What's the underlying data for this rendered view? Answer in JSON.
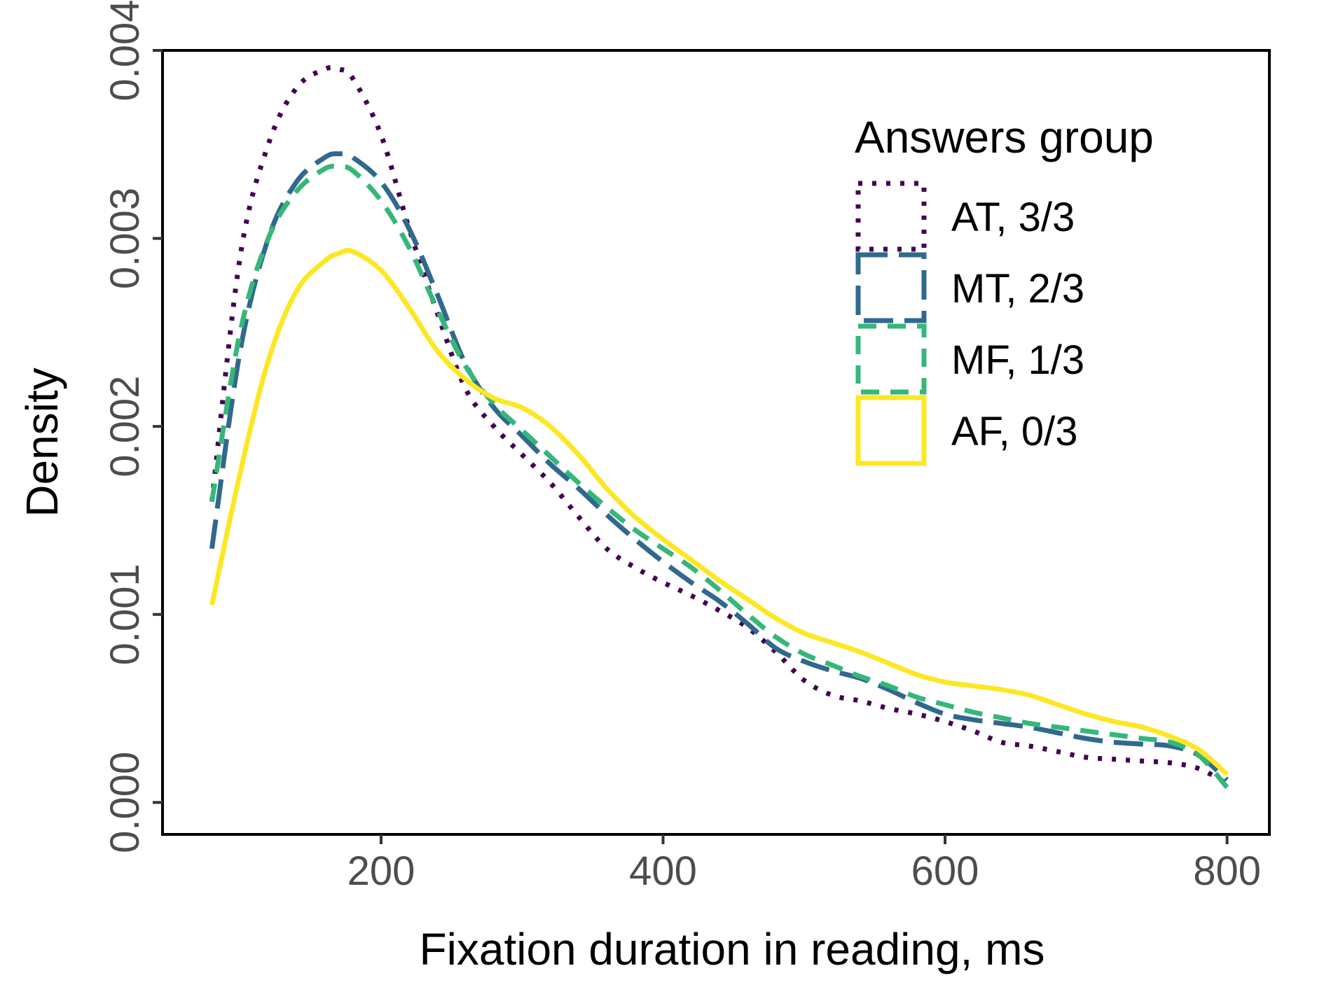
{
  "chart_data": {
    "type": "line",
    "title": "",
    "xlabel": "Fixation duration in reading, ms",
    "ylabel": "Density",
    "xlim": [
      45,
      830
    ],
    "ylim": [
      -0.00017,
      0.004
    ],
    "x_ticks": [
      200,
      400,
      600,
      800
    ],
    "x_tick_labels": [
      "200",
      "400",
      "600",
      "800"
    ],
    "y_ticks": [
      0.0,
      0.001,
      0.002,
      0.003,
      0.004
    ],
    "y_tick_labels": [
      "0.000",
      "0.001",
      "0.002",
      "0.003",
      "0.004"
    ],
    "grid": false,
    "legend": {
      "title": "Answers group",
      "position": "top-right"
    },
    "x": [
      80,
      100,
      120,
      140,
      160,
      170,
      180,
      200,
      220,
      240,
      260,
      280,
      300,
      320,
      340,
      360,
      380,
      400,
      420,
      440,
      460,
      480,
      500,
      520,
      540,
      560,
      580,
      600,
      620,
      640,
      660,
      680,
      700,
      720,
      740,
      760,
      780,
      800
    ],
    "series": [
      {
        "name": "AT, 3/3",
        "color": "#440154",
        "dash": "dotted",
        "values": [
          0.0016,
          0.0029,
          0.0035,
          0.0038,
          0.0039,
          0.0039,
          0.00385,
          0.00355,
          0.00305,
          0.0026,
          0.0022,
          0.002,
          0.00185,
          0.0017,
          0.00152,
          0.00135,
          0.00125,
          0.00117,
          0.0011,
          0.00102,
          0.00093,
          0.0008,
          0.00065,
          0.00057,
          0.00054,
          0.0005,
          0.00047,
          0.00043,
          0.00038,
          0.00032,
          0.0003,
          0.00027,
          0.00024,
          0.00023,
          0.00022,
          0.00021,
          0.00018,
          0.0001
        ]
      },
      {
        "name": "MT, 2/3",
        "color": "#31688e",
        "dash": "long-dash",
        "values": [
          0.00135,
          0.0024,
          0.003,
          0.0033,
          0.00343,
          0.00345,
          0.00343,
          0.0033,
          0.00305,
          0.0027,
          0.00233,
          0.0021,
          0.00195,
          0.0018,
          0.00167,
          0.00153,
          0.0014,
          0.00128,
          0.00117,
          0.00107,
          0.00095,
          0.00082,
          0.00075,
          0.0007,
          0.00066,
          0.0006,
          0.00053,
          0.00047,
          0.00044,
          0.00042,
          0.0004,
          0.00037,
          0.00034,
          0.00032,
          0.00031,
          0.0003,
          0.00025,
          0.00012
        ]
      },
      {
        "name": "MF, 1/3",
        "color": "#35b779",
        "dash": "dashed",
        "values": [
          0.0016,
          0.0025,
          0.003,
          0.00325,
          0.00337,
          0.00338,
          0.00336,
          0.0032,
          0.00295,
          0.00262,
          0.00232,
          0.00212,
          0.00198,
          0.00184,
          0.0017,
          0.00157,
          0.00145,
          0.00135,
          0.00125,
          0.00113,
          0.001,
          0.00088,
          0.00079,
          0.00073,
          0.00067,
          0.00062,
          0.00056,
          0.00052,
          0.00048,
          0.00045,
          0.00042,
          0.0004,
          0.00038,
          0.00036,
          0.00034,
          0.00032,
          0.00025,
          8e-05
        ]
      },
      {
        "name": "AF, 0/3",
        "color": "#fde725",
        "dash": "solid",
        "values": [
          0.00105,
          0.00175,
          0.00235,
          0.00272,
          0.00288,
          0.00292,
          0.00293,
          0.00283,
          0.00263,
          0.0024,
          0.00225,
          0.00215,
          0.0021,
          0.002,
          0.00185,
          0.00167,
          0.00152,
          0.0014,
          0.00129,
          0.00118,
          0.00108,
          0.00098,
          0.0009,
          0.00085,
          0.0008,
          0.00074,
          0.00068,
          0.00064,
          0.00062,
          0.0006,
          0.00057,
          0.00052,
          0.00047,
          0.00043,
          0.0004,
          0.00035,
          0.00028,
          0.00015
        ]
      }
    ]
  }
}
